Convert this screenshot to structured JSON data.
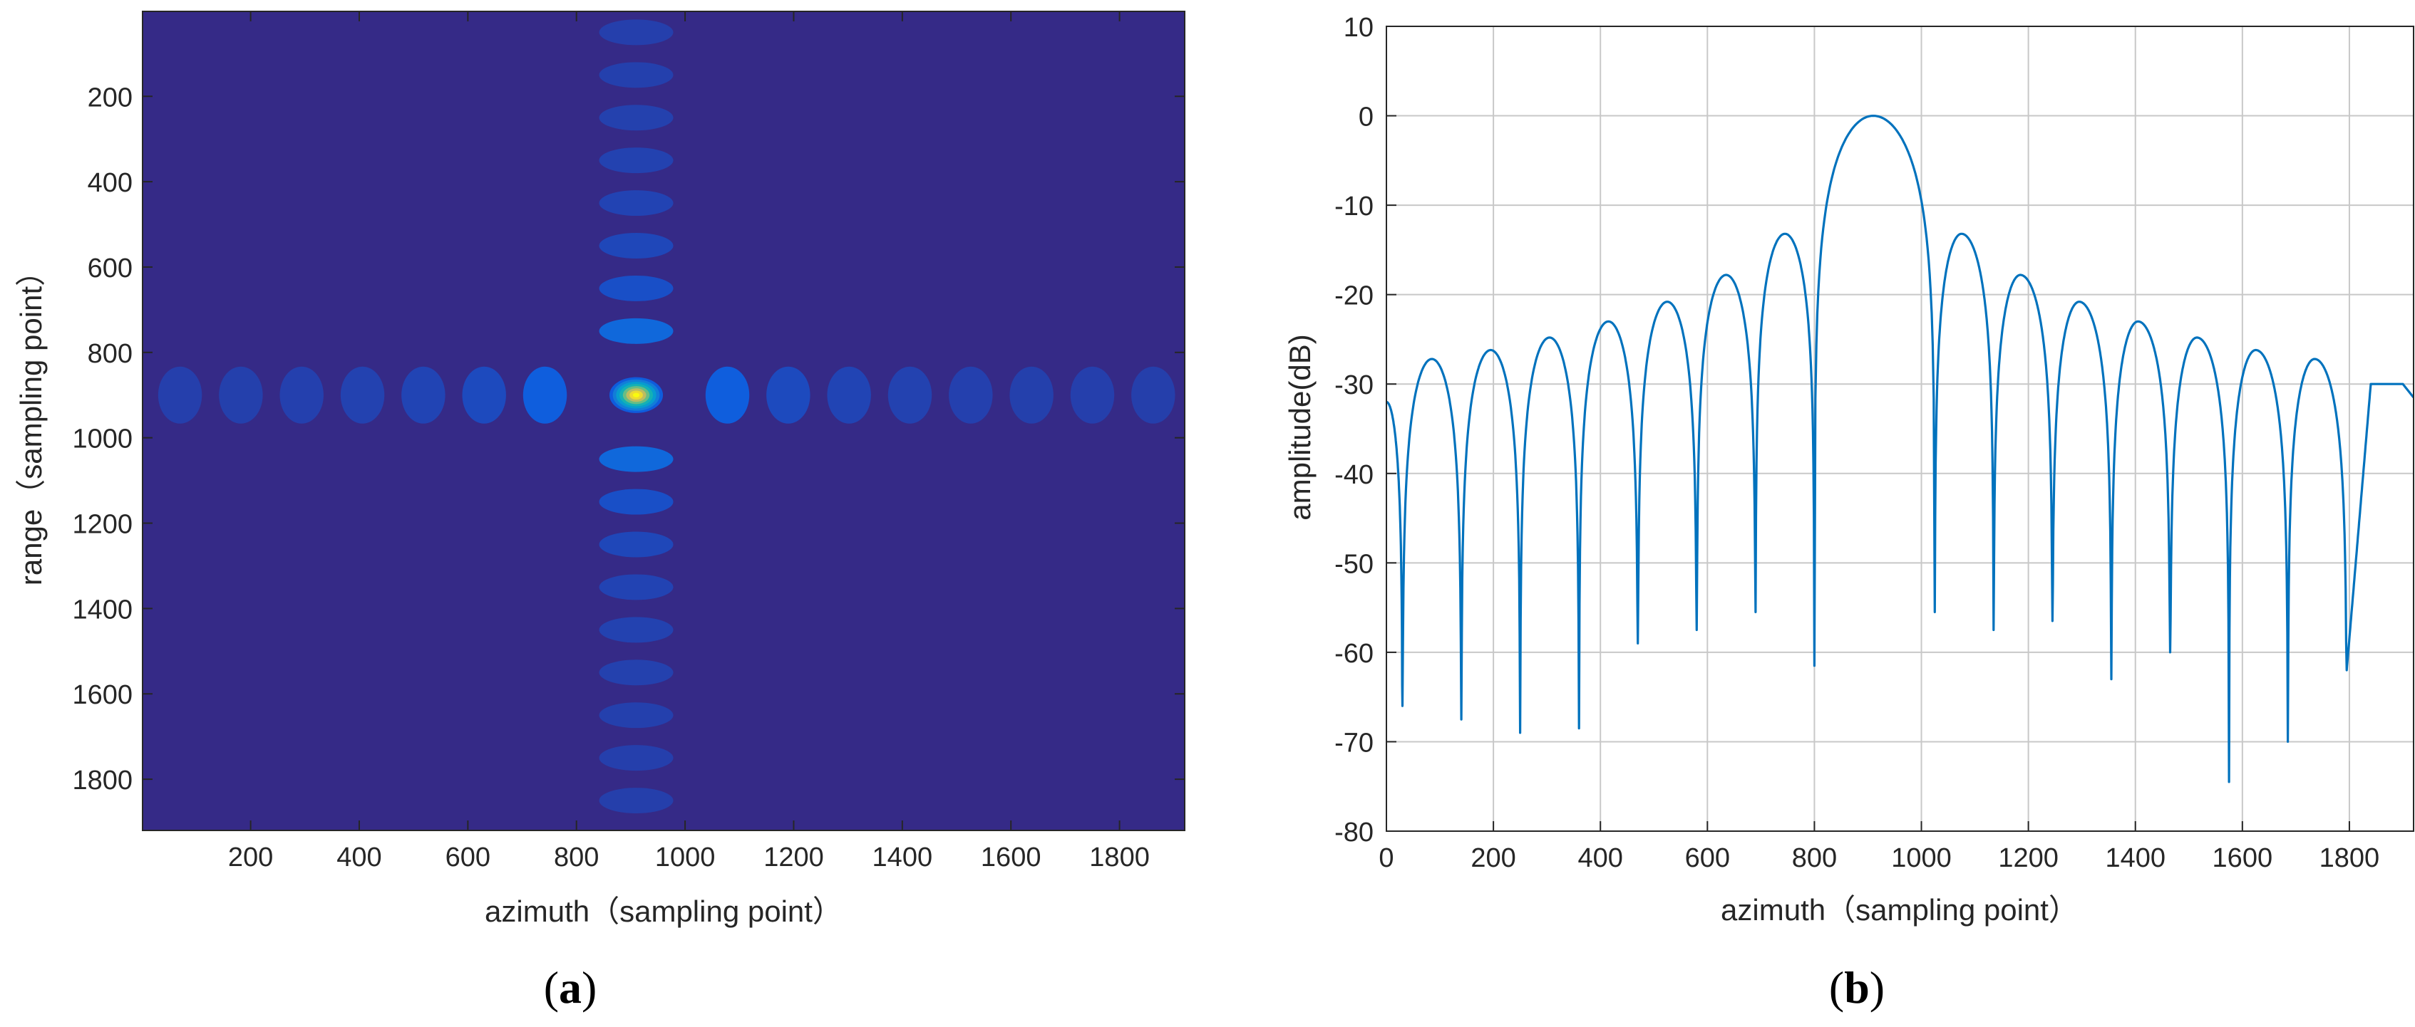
{
  "chart_data": [
    {
      "type": "heatmap",
      "panel_label": "(a)",
      "caption_letter": "a",
      "xlabel": "azimuth（sampling point）",
      "ylabel": "range（sampling point）",
      "xlim": [
        1,
        1920
      ],
      "ylim": [
        1,
        1920
      ],
      "y_reversed": true,
      "colormap": "parula",
      "xticks": [
        200,
        400,
        600,
        800,
        1000,
        1200,
        1400,
        1600,
        1800
      ],
      "yticks": [
        200,
        400,
        600,
        800,
        1000,
        1200,
        1400,
        1600,
        1800
      ],
      "peak_center": {
        "azimuth": 910,
        "range": 900
      },
      "value_description": "2D sinc-squared point target response, peak normalized to 1",
      "azimuth_sidelobe_spacing": 112,
      "range_sidelobe_spacing": 100
    },
    {
      "type": "line",
      "panel_label": "(b)",
      "caption_letter": "b",
      "xlabel": "azimuth（sampling point）",
      "ylabel": "amplitude(dB)",
      "xlim": [
        0,
        1920
      ],
      "ylim": [
        -80,
        10
      ],
      "xticks": [
        0,
        200,
        400,
        600,
        800,
        1000,
        1200,
        1400,
        1600,
        1800
      ],
      "yticks": [
        10,
        0,
        -10,
        -20,
        -30,
        -40,
        -50,
        -60,
        -70,
        -80
      ],
      "grid": true,
      "series": [
        {
          "color": "#0072BD",
          "main_lobe": {
            "x": 910,
            "y": 0
          },
          "nulls_left": [
            {
              "x": 30,
              "y": -66
            },
            {
              "x": 140,
              "y": -67.5
            },
            {
              "x": 250,
              "y": -69
            },
            {
              "x": 360,
              "y": -68.5
            },
            {
              "x": 470,
              "y": -59
            },
            {
              "x": 580,
              "y": -57.5
            },
            {
              "x": 690,
              "y": -55.5
            },
            {
              "x": 800,
              "y": -61.5
            }
          ],
          "nulls_right": [
            {
              "x": 1025,
              "y": -55.5
            },
            {
              "x": 1135,
              "y": -57.5
            },
            {
              "x": 1245,
              "y": -56.5
            },
            {
              "x": 1355,
              "y": -63
            },
            {
              "x": 1465,
              "y": -60
            },
            {
              "x": 1575,
              "y": -74.5
            },
            {
              "x": 1685,
              "y": -70
            },
            {
              "x": 1795,
              "y": -62
            }
          ],
          "sidelobes_left": [
            {
              "x": 85,
              "y": -27.2
            },
            {
              "x": 195,
              "y": -26.2
            },
            {
              "x": 305,
              "y": -24.8
            },
            {
              "x": 415,
              "y": -23.0
            },
            {
              "x": 525,
              "y": -20.8
            },
            {
              "x": 635,
              "y": -17.8
            },
            {
              "x": 745,
              "y": -13.2
            }
          ],
          "sidelobes_right": [
            {
              "x": 1075,
              "y": -13.2
            },
            {
              "x": 1185,
              "y": -17.8
            },
            {
              "x": 1295,
              "y": -20.8
            },
            {
              "x": 1405,
              "y": -23.0
            },
            {
              "x": 1515,
              "y": -24.8
            },
            {
              "x": 1625,
              "y": -26.2
            },
            {
              "x": 1735,
              "y": -27.2
            }
          ],
          "left_edge": {
            "x": 0,
            "y": -32
          },
          "right_tail": [
            {
              "x": 1840,
              "y": -30
            },
            {
              "x": 1900,
              "y": -30
            },
            {
              "x": 1920,
              "y": -31.5
            }
          ]
        }
      ]
    }
  ]
}
